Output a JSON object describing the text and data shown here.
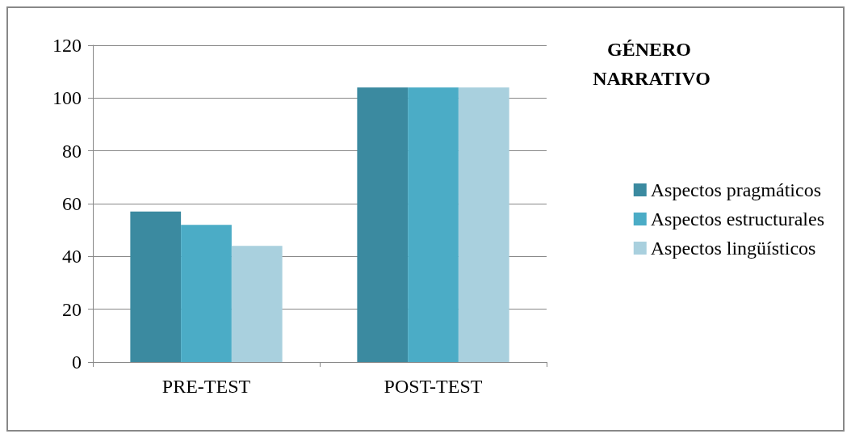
{
  "chart_data": {
    "type": "bar",
    "title": "GÉNERO NARRATIVO",
    "categories": [
      "PRE-TEST",
      "POST-TEST"
    ],
    "series": [
      {
        "name": "Aspectos pragmáticos",
        "color": "#3b8aa0",
        "values": [
          57,
          104
        ]
      },
      {
        "name": "Aspectos estructurales",
        "color": "#4bacc6",
        "values": [
          52,
          104
        ]
      },
      {
        "name": "Aspectos lingüísticos",
        "color": "#a9d0de",
        "values": [
          44,
          104
        ]
      }
    ],
    "ylim": [
      0,
      120
    ],
    "yticks": [
      0,
      20,
      40,
      60,
      80,
      100,
      120
    ],
    "grid": "y",
    "legend": "right"
  }
}
